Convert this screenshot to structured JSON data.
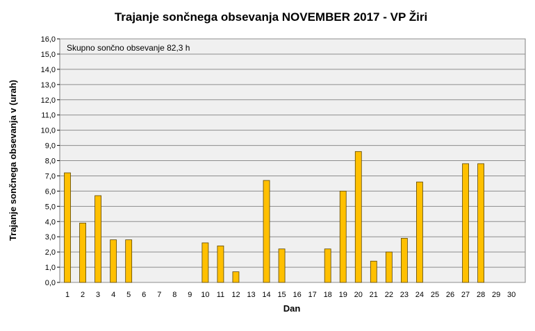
{
  "chart_data": {
    "type": "bar",
    "title": "Trajanje  sončnega  obsevanja  NOVEMBER  2017 - VP Žiri",
    "xlabel": "Dan",
    "ylabel": "Trajanje  sončnega obsevanja  v (urah)",
    "annotation": "Skupno sončno obsevanje 82,3 h",
    "ylim": [
      0,
      16
    ],
    "ytick_step": 1,
    "yticks": [
      "0,0",
      "1,0",
      "2,0",
      "3,0",
      "4,0",
      "5,0",
      "6,0",
      "7,0",
      "8,0",
      "9,0",
      "10,0",
      "11,0",
      "12,0",
      "13,0",
      "14,0",
      "15,0",
      "16,0"
    ],
    "grid": true,
    "categories": [
      "1",
      "2",
      "3",
      "4",
      "5",
      "6",
      "7",
      "8",
      "9",
      "10",
      "11",
      "12",
      "13",
      "14",
      "15",
      "16",
      "17",
      "18",
      "19",
      "20",
      "21",
      "22",
      "23",
      "24",
      "25",
      "26",
      "27",
      "28",
      "29",
      "30"
    ],
    "values": [
      7.2,
      3.9,
      5.7,
      2.8,
      2.8,
      0,
      0,
      0,
      0,
      2.6,
      2.4,
      0.7,
      0,
      6.7,
      2.2,
      0,
      0,
      2.2,
      6.0,
      8.6,
      1.4,
      2.0,
      2.9,
      6.6,
      0,
      0,
      7.8,
      7.8,
      0,
      0
    ],
    "colors": {
      "bar": "#ffc000",
      "bar_edge": "#5a4500",
      "plot_bg": "#f0f0f0",
      "grid": "#8c8c8c"
    }
  }
}
